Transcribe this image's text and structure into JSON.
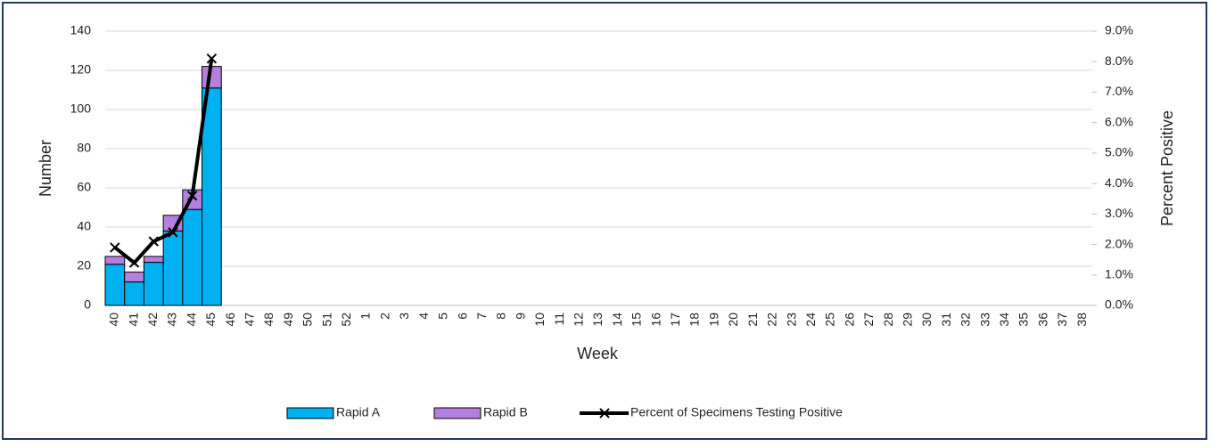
{
  "chart_data": {
    "type": "bar",
    "categories": [
      "40",
      "41",
      "42",
      "43",
      "44",
      "45",
      "46",
      "47",
      "48",
      "49",
      "50",
      "51",
      "52",
      "1",
      "2",
      "3",
      "4",
      "5",
      "6",
      "7",
      "8",
      "9",
      "10",
      "11",
      "12",
      "13",
      "14",
      "15",
      "16",
      "17",
      "18",
      "19",
      "20",
      "21",
      "22",
      "23",
      "24",
      "25",
      "26",
      "27",
      "28",
      "29",
      "30",
      "31",
      "32",
      "33",
      "34",
      "35",
      "36",
      "37",
      "38"
    ],
    "x_label": "Week",
    "y_label": "Number",
    "y2_label": "Percent Positive",
    "stacked": true,
    "grid": true,
    "legend": "bottom",
    "series": [
      {
        "name": "Rapid A",
        "type": "bar",
        "color": "#00b0f0",
        "values": [
          21,
          12,
          22,
          38,
          49,
          111,
          null,
          null,
          null,
          null,
          null,
          null,
          null,
          null,
          null,
          null,
          null,
          null,
          null,
          null,
          null,
          null,
          null,
          null,
          null,
          null,
          null,
          null,
          null,
          null,
          null,
          null,
          null,
          null,
          null,
          null,
          null,
          null,
          null,
          null,
          null,
          null,
          null,
          null,
          null,
          null,
          null,
          null,
          null,
          null,
          null
        ]
      },
      {
        "name": "Rapid B",
        "type": "bar",
        "color": "#b57fe0",
        "values": [
          4,
          5,
          3,
          8,
          10,
          11,
          null,
          null,
          null,
          null,
          null,
          null,
          null,
          null,
          null,
          null,
          null,
          null,
          null,
          null,
          null,
          null,
          null,
          null,
          null,
          null,
          null,
          null,
          null,
          null,
          null,
          null,
          null,
          null,
          null,
          null,
          null,
          null,
          null,
          null,
          null,
          null,
          null,
          null,
          null,
          null,
          null,
          null,
          null,
          null,
          null
        ]
      },
      {
        "name": "Percent of Specimens Testing Positive",
        "type": "line",
        "axis": "y2",
        "color": "#000000",
        "values": [
          1.9,
          1.4,
          2.1,
          2.4,
          3.6,
          8.1,
          null,
          null,
          null,
          null,
          null,
          null,
          null,
          null,
          null,
          null,
          null,
          null,
          null,
          null,
          null,
          null,
          null,
          null,
          null,
          null,
          null,
          null,
          null,
          null,
          null,
          null,
          null,
          null,
          null,
          null,
          null,
          null,
          null,
          null,
          null,
          null,
          null,
          null,
          null,
          null,
          null,
          null,
          null,
          null,
          null
        ]
      }
    ],
    "ylim": [
      0,
      140
    ],
    "yticks": [
      0,
      20,
      40,
      60,
      80,
      100,
      120,
      140
    ],
    "y2lim": [
      0,
      9
    ],
    "y2ticks": [
      {
        "value": 0,
        "label": "0.0%"
      },
      {
        "value": 1,
        "label": "1.0%"
      },
      {
        "value": 2,
        "label": "2.0%"
      },
      {
        "value": 3,
        "label": "3.0%"
      },
      {
        "value": 4,
        "label": "4.0%"
      },
      {
        "value": 5,
        "label": "5.0%"
      },
      {
        "value": 6,
        "label": "6.0%"
      },
      {
        "value": 7,
        "label": "7.0%"
      },
      {
        "value": 8,
        "label": "8.0%"
      },
      {
        "value": 9,
        "label": "9.0%"
      }
    ]
  }
}
